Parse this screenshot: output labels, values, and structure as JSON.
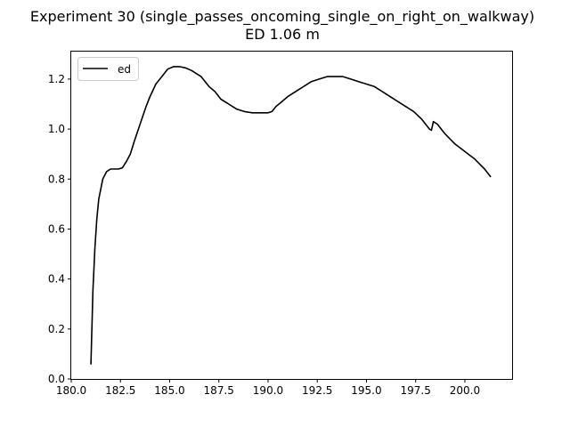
{
  "chart_data": {
    "type": "line",
    "title": "Experiment 30 (single_passes_oncoming_single_on_right_on_walkway)",
    "subtitle": "ED 1.06 m",
    "xlabel": "",
    "ylabel": "",
    "xlim": [
      180.0,
      202.4
    ],
    "ylim": [
      0.0,
      1.31
    ],
    "xticks": [
      180.0,
      182.5,
      185.0,
      187.5,
      190.0,
      192.5,
      195.0,
      197.5,
      200.0
    ],
    "xtick_labels": [
      "180.0",
      "182.5",
      "185.0",
      "187.5",
      "190.0",
      "192.5",
      "195.0",
      "197.5",
      "200.0"
    ],
    "yticks": [
      0.0,
      0.2,
      0.4,
      0.6,
      0.8,
      1.0,
      1.2
    ],
    "ytick_labels": [
      "0.0",
      "0.2",
      "0.4",
      "0.6",
      "0.8",
      "1.0",
      "1.2"
    ],
    "grid": false,
    "legend": {
      "position": "top-left"
    },
    "series": [
      {
        "name": "ed",
        "color": "#000000",
        "x": [
          181.0,
          181.1,
          181.2,
          181.3,
          181.4,
          181.6,
          181.8,
          182.0,
          182.2,
          182.4,
          182.6,
          182.8,
          183.0,
          183.2,
          183.5,
          183.8,
          184.0,
          184.3,
          184.6,
          184.9,
          185.2,
          185.5,
          185.8,
          186.1,
          186.4,
          186.6,
          186.8,
          187.0,
          187.3,
          187.6,
          188.0,
          188.4,
          188.8,
          189.2,
          189.6,
          190.0,
          190.2,
          190.4,
          190.7,
          191.0,
          191.4,
          191.8,
          192.2,
          192.6,
          193.0,
          193.4,
          193.8,
          194.2,
          194.6,
          195.0,
          195.4,
          195.8,
          196.2,
          196.6,
          197.0,
          197.4,
          197.8,
          198.2,
          198.3,
          198.4,
          198.6,
          198.8,
          199.0,
          199.5,
          200.0,
          200.5,
          201.0,
          201.3
        ],
        "values": [
          0.06,
          0.35,
          0.52,
          0.64,
          0.72,
          0.8,
          0.83,
          0.84,
          0.84,
          0.84,
          0.845,
          0.87,
          0.9,
          0.95,
          1.02,
          1.09,
          1.13,
          1.18,
          1.21,
          1.24,
          1.25,
          1.25,
          1.245,
          1.235,
          1.22,
          1.21,
          1.19,
          1.17,
          1.15,
          1.12,
          1.1,
          1.08,
          1.07,
          1.065,
          1.065,
          1.065,
          1.07,
          1.09,
          1.11,
          1.13,
          1.15,
          1.17,
          1.19,
          1.2,
          1.21,
          1.21,
          1.21,
          1.2,
          1.19,
          1.18,
          1.17,
          1.15,
          1.13,
          1.11,
          1.09,
          1.07,
          1.04,
          1.0,
          0.995,
          1.03,
          1.02,
          1.0,
          0.98,
          0.94,
          0.91,
          0.88,
          0.84,
          0.81
        ]
      }
    ]
  }
}
